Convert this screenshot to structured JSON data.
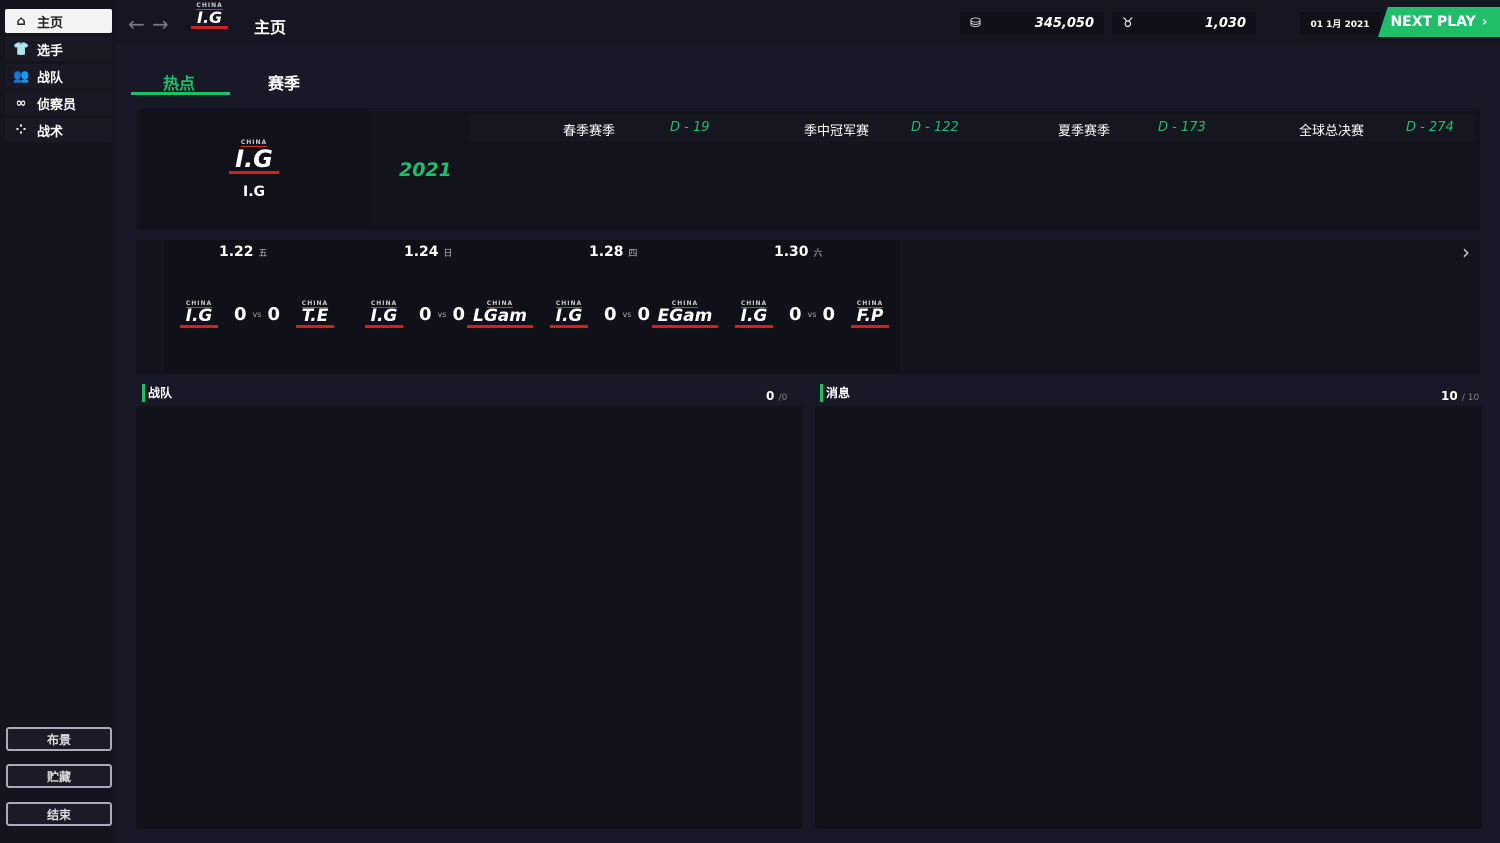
{
  "sidebar": {
    "items": [
      {
        "label": "主页",
        "icon": "home-icon"
      },
      {
        "label": "选手",
        "icon": "jersey-icon"
      },
      {
        "label": "战队",
        "icon": "team-icon"
      },
      {
        "label": "侦察员",
        "icon": "binoculars-icon"
      },
      {
        "label": "战术",
        "icon": "tactics-icon"
      }
    ],
    "buttons": [
      "布景",
      "贮藏",
      "结束"
    ]
  },
  "header": {
    "team_logo": "I.G",
    "logo_sub": "CHINA",
    "title": "主页",
    "money": "345,050",
    "fans": "1,030",
    "date": "01 1月 2021",
    "next_label": "NEXT PLAY"
  },
  "tabs": [
    "热点",
    "赛季"
  ],
  "team": {
    "name": "I.G",
    "year": "2021"
  },
  "seasons": [
    {
      "name": "春季赛季",
      "days": "D - 19"
    },
    {
      "name": "季中冠军赛",
      "days": "D - 122"
    },
    {
      "name": "夏季赛季",
      "days": "D - 173"
    },
    {
      "name": "全球总决赛",
      "days": "D - 274"
    }
  ],
  "matches": [
    {
      "date": "1.22",
      "weekday": "五",
      "home": "I.G",
      "away": "T.E",
      "home_score": "0",
      "away_score": "0",
      "vs": "vs"
    },
    {
      "date": "1.24",
      "weekday": "日",
      "home": "I.G",
      "away": "LGam",
      "home_score": "0",
      "away_score": "0",
      "vs": "vs"
    },
    {
      "date": "1.28",
      "weekday": "四",
      "home": "I.G",
      "away": "EGam",
      "home_score": "0",
      "away_score": "0",
      "vs": "vs"
    },
    {
      "date": "1.30",
      "weekday": "六",
      "home": "I.G",
      "away": "F.P",
      "home_score": "0",
      "away_score": "0",
      "vs": "vs"
    }
  ],
  "team_panel": {
    "title": "战队",
    "count": "0",
    "total": "/0"
  },
  "news_panel": {
    "title": "消息",
    "count": "10",
    "total": "/ 10"
  },
  "colors": {
    "accent": "#1fbf6a",
    "logo_red": "#c22"
  }
}
